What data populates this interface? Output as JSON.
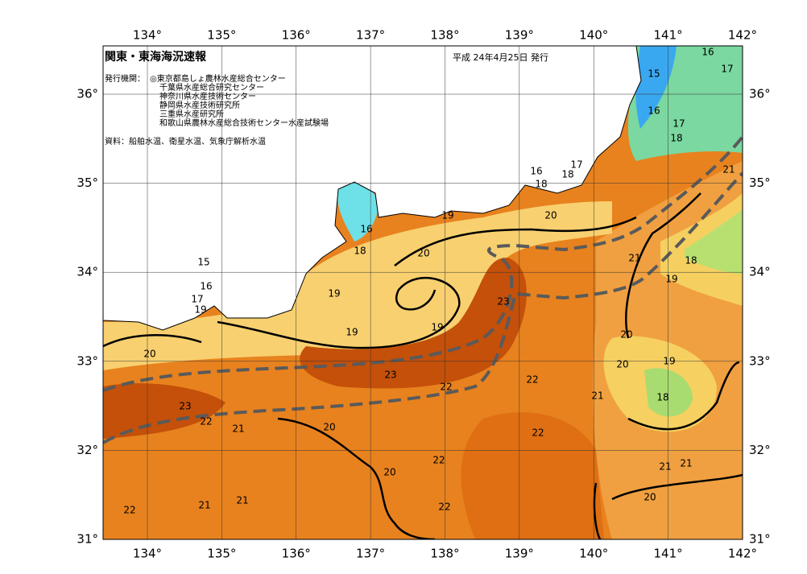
{
  "header": {
    "title": "関東・東海海況速報",
    "date": "平成 24年4月25日 発行"
  },
  "issuers": {
    "label": "発行機関：",
    "items": [
      "◎東京都島しょ農林水産総合センター",
      "千葉県水産総合研究センター",
      "神奈川県水産技術センター",
      "静岡県水産技術研究所",
      "三重県水産研究所",
      "和歌山県農林水産総合技術センター水産試験場"
    ]
  },
  "source": "資料：船舶水温、衛星水温、気象庁解析水温",
  "longitude_labels": [
    "134°",
    "135°",
    "136°",
    "137°",
    "138°",
    "139°",
    "140°",
    "141°",
    "142°"
  ],
  "latitude_labels": [
    "31°",
    "32°",
    "33°",
    "34°",
    "35°",
    "36°"
  ],
  "isotherm_labels": [
    16,
    17,
    15,
    16,
    17,
    18,
    21,
    16,
    18,
    17,
    18,
    19,
    20,
    16,
    18,
    20,
    21,
    18,
    15,
    16,
    19,
    17,
    19,
    19,
    23,
    19,
    19,
    20,
    20,
    19,
    20,
    23,
    22,
    22,
    21,
    18,
    23,
    22,
    21,
    20,
    22,
    22,
    21,
    21,
    20,
    20,
    22,
    21,
    21,
    22
  ]
}
